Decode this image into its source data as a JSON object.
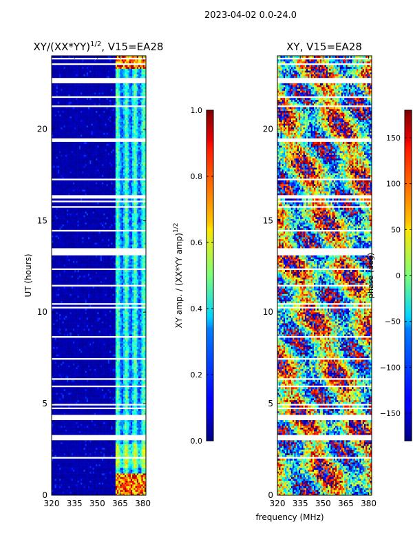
{
  "suptitle": "2023-04-02 0.0-24.0",
  "xlabel_shared": "frequency (MHz)",
  "chart_data": [
    {
      "type": "heatmap",
      "title": "XY/(XX*YY)",
      "title_power": "1/2",
      "title_suffix": ", V15=EA28",
      "xlabel": "frequency (MHz)",
      "ylabel": "UT (hours)",
      "xlim": [
        320,
        382
      ],
      "ylim": [
        0,
        24
      ],
      "xticks": [
        320,
        335,
        350,
        365,
        380
      ],
      "xtick_labels": [
        "320",
        "335",
        "350",
        "365",
        "380"
      ],
      "yticks": [
        0,
        5,
        10,
        15,
        20
      ],
      "ytick_labels": [
        "0",
        "5",
        "10",
        "15",
        "20"
      ],
      "colorbar": {
        "label": "XY amp. / (XX*YY amp)",
        "label_power": "1/2",
        "range": [
          0.0,
          1.0
        ],
        "ticks": [
          0.0,
          0.2,
          0.4,
          0.6,
          0.8,
          1.0
        ],
        "tick_labels": [
          "0.0",
          "0.2",
          "0.4",
          "0.6",
          "0.8",
          "1.0"
        ],
        "colormap": "jet"
      },
      "typical_values": {
        "below_362_MHz": 0.02,
        "above_362_MHz": 0.3,
        "peak": 0.95
      },
      "missing_time_bands_hours": [
        [
          2.95,
          3.25
        ],
        [
          4.1,
          4.4
        ],
        [
          13.15,
          13.45
        ],
        [
          22.5,
          22.8
        ]
      ]
    },
    {
      "type": "heatmap",
      "title": "XY, V15=EA28",
      "xlabel": "frequency (MHz)",
      "ylabel": "",
      "xlim": [
        320,
        382
      ],
      "ylim": [
        0,
        24
      ],
      "xticks": [
        320,
        335,
        350,
        365,
        380
      ],
      "xtick_labels": [
        "320",
        "335",
        "350",
        "365",
        "380"
      ],
      "yticks": [
        0,
        5,
        10,
        15,
        20
      ],
      "ytick_labels": [
        "0",
        "5",
        "10",
        "15",
        "20"
      ],
      "colorbar": {
        "label": "phase (deg)",
        "range": [
          -180,
          180
        ],
        "ticks": [
          -150,
          -100,
          -50,
          0,
          50,
          100,
          150
        ],
        "tick_labels": [
          "−150",
          "−100",
          "−50",
          "0",
          "50",
          "100",
          "150"
        ],
        "colormap": "jet"
      },
      "typical_values": {
        "range": [
          -180,
          180
        ]
      },
      "missing_time_bands_hours": [
        [
          2.95,
          3.25
        ],
        [
          4.1,
          4.4
        ],
        [
          13.15,
          13.45
        ],
        [
          22.5,
          22.8
        ]
      ]
    }
  ]
}
